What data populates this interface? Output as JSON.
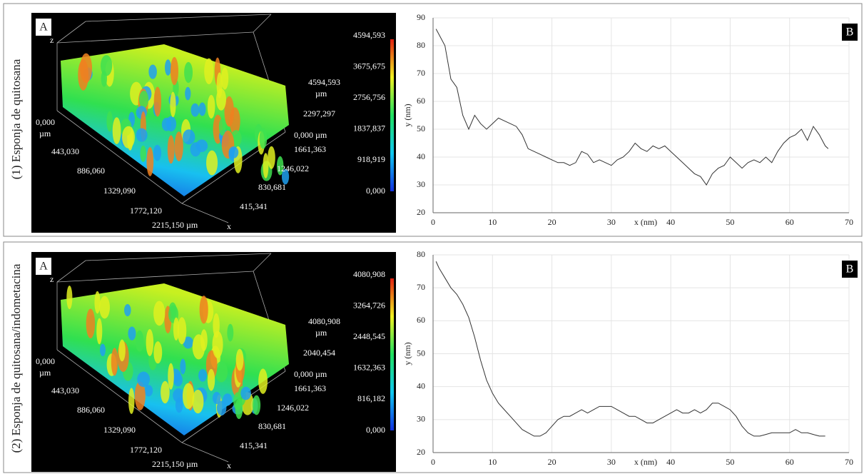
{
  "rows": [
    {
      "label": "(1) Esponja de quitosana",
      "surface": {
        "panel": "A",
        "z_axis": "z",
        "x_axis": "x",
        "origin": "0,000",
        "origin_unit": "µm",
        "x_labels": [
          "443,030",
          "886,060",
          "1329,090",
          "1772,120",
          "2215,150 µm"
        ],
        "y_labels": [
          "1661,363",
          "1246,022",
          "830,681",
          "415,341"
        ],
        "y_end": "0,000 µm",
        "z_labels": [
          "4594,593",
          "µm",
          "2297,297"
        ],
        "colorbar": [
          "4594,593",
          "3675,675",
          "2756,756",
          "1837,837",
          "918,919",
          "0,000"
        ]
      }
    },
    {
      "label": "(2) Esponja de quitosana/indometacina",
      "surface": {
        "panel": "A",
        "z_axis": "z",
        "x_axis": "x",
        "origin": "0,000",
        "origin_unit": "µm",
        "x_labels": [
          "443,030",
          "886,060",
          "1329,090",
          "1772,120",
          "2215,150 µm"
        ],
        "y_labels": [
          "1661,363",
          "1246,022",
          "830,681",
          "415,341"
        ],
        "y_end": "0,000 µm",
        "z_labels": [
          "4080,908",
          "µm",
          "2040,454"
        ],
        "colorbar": [
          "4080,908",
          "3264,726",
          "2448,545",
          "1632,363",
          "816,182",
          "0,000"
        ]
      }
    }
  ],
  "chart_data": [
    {
      "type": "line",
      "panel": "B",
      "xlabel": "x (nm)",
      "ylabel": "y (nm)",
      "color": "#333333",
      "grid": true,
      "xlim": [
        0,
        70
      ],
      "ylim": [
        20,
        90
      ],
      "xticks": [
        0,
        10,
        20,
        30,
        40,
        50,
        60,
        70
      ],
      "yticks": [
        20,
        30,
        40,
        50,
        60,
        70,
        80,
        90
      ],
      "x": [
        0.5,
        1,
        2,
        3,
        4,
        5,
        6,
        7,
        8,
        9,
        10,
        11,
        12,
        13,
        14,
        15,
        16,
        17,
        18,
        19,
        20,
        21,
        22,
        23,
        24,
        25,
        26,
        27,
        28,
        29,
        30,
        31,
        32,
        33,
        34,
        35,
        36,
        37,
        38,
        39,
        40,
        41,
        42,
        43,
        44,
        45,
        46,
        47,
        48,
        49,
        50,
        51,
        52,
        53,
        54,
        55,
        56,
        57,
        58,
        59,
        60,
        61,
        62,
        63,
        64,
        65,
        66,
        66.5
      ],
      "values": [
        86,
        84,
        80,
        68,
        65,
        55,
        50,
        55,
        52,
        50,
        52,
        54,
        53,
        52,
        51,
        48,
        43,
        42,
        41,
        40,
        39,
        38,
        38,
        37,
        38,
        42,
        41,
        38,
        39,
        38,
        37,
        39,
        40,
        42,
        45,
        43,
        42,
        44,
        43,
        44,
        42,
        40,
        38,
        36,
        34,
        33,
        30,
        34,
        36,
        37,
        40,
        38,
        36,
        38,
        39,
        38,
        40,
        38,
        42,
        45,
        47,
        48,
        50,
        46,
        51,
        48,
        44,
        43
      ]
    },
    {
      "type": "line",
      "panel": "B",
      "xlabel": "x (nm)",
      "ylabel": "y (nm)",
      "color": "#333333",
      "grid": true,
      "xlim": [
        0,
        70
      ],
      "ylim": [
        20,
        80
      ],
      "xticks": [
        0,
        10,
        20,
        30,
        40,
        50,
        60,
        70
      ],
      "yticks": [
        20,
        30,
        40,
        50,
        60,
        70,
        80
      ],
      "x": [
        0.5,
        1,
        2,
        3,
        4,
        5,
        6,
        7,
        8,
        9,
        10,
        11,
        12,
        13,
        14,
        15,
        16,
        17,
        18,
        19,
        20,
        21,
        22,
        23,
        24,
        25,
        26,
        27,
        28,
        29,
        30,
        31,
        32,
        33,
        34,
        35,
        36,
        37,
        38,
        39,
        40,
        41,
        42,
        43,
        44,
        45,
        46,
        47,
        48,
        49,
        50,
        51,
        52,
        53,
        54,
        55,
        56,
        57,
        58,
        59,
        60,
        61,
        62,
        63,
        64,
        65,
        66
      ],
      "values": [
        78,
        76,
        73,
        70,
        68,
        65,
        61,
        55,
        48,
        42,
        38,
        35,
        33,
        31,
        29,
        27,
        26,
        25,
        25,
        26,
        28,
        30,
        31,
        31,
        32,
        33,
        32,
        33,
        34,
        34,
        34,
        33,
        32,
        31,
        31,
        30,
        29,
        29,
        30,
        31,
        32,
        33,
        32,
        32,
        33,
        32,
        33,
        35,
        35,
        34,
        33,
        31,
        28,
        26,
        25,
        25,
        25.5,
        26,
        26,
        26,
        26,
        27,
        26,
        26,
        25.5,
        25,
        25
      ]
    }
  ]
}
